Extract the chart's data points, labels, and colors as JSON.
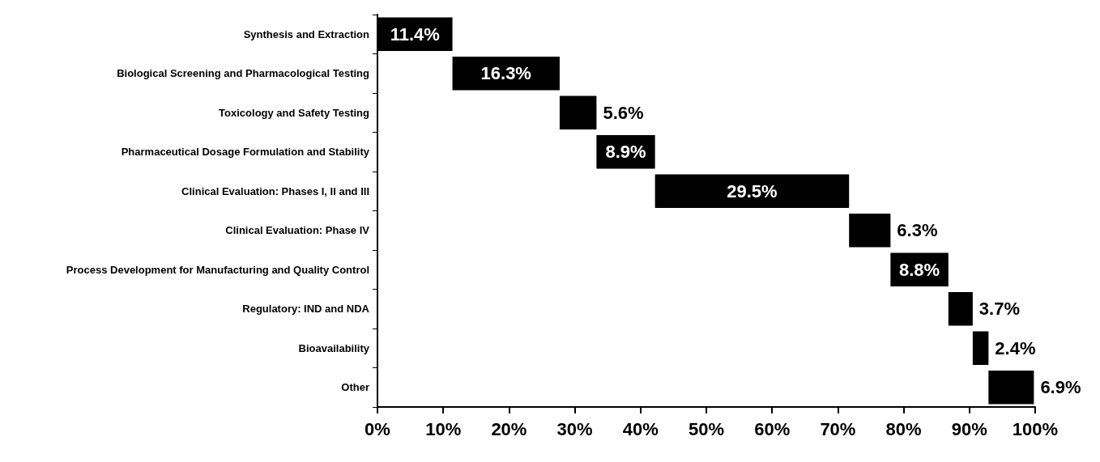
{
  "chart_data": {
    "type": "bar",
    "orientation": "horizontal",
    "color": "#000000",
    "categories": [
      "Synthesis and Extraction",
      "Biological Screening and Pharmacological Testing",
      "Toxicology and Safety Testing",
      "Pharmaceutical Dosage Formulation and Stability",
      "Clinical Evaluation: Phases I, II and III",
      "Clinical Evaluation: Phase IV",
      "Process Development for Manufacturing and Quality Control",
      "Regulatory: IND and NDA",
      "Bioavailability",
      "Other"
    ],
    "values": [
      11.4,
      16.3,
      5.6,
      8.9,
      29.5,
      6.3,
      8.8,
      3.7,
      2.4,
      6.9
    ],
    "base": [
      0,
      11.4,
      27.7,
      33.3,
      42.2,
      71.7,
      78.0,
      86.8,
      90.5,
      92.9
    ],
    "value_labels": [
      "11.4%",
      "16.3%",
      "5.6%",
      "8.9%",
      "29.5%",
      "6.3%",
      "8.8%",
      "3.7%",
      "2.4%",
      "6.9%"
    ],
    "xlim": [
      0,
      100
    ],
    "xticks": [
      {
        "value": 0,
        "label": "0%"
      },
      {
        "value": 10,
        "label": "10%"
      },
      {
        "value": 20,
        "label": "20%"
      },
      {
        "value": 30,
        "label": "30%"
      },
      {
        "value": 40,
        "label": "40%"
      },
      {
        "value": 50,
        "label": "50%"
      },
      {
        "value": 60,
        "label": "60%"
      },
      {
        "value": 70,
        "label": "70%"
      },
      {
        "value": 80,
        "label": "80%"
      },
      {
        "value": 90,
        "label": "90%"
      },
      {
        "value": 100,
        "label": "100%"
      }
    ]
  }
}
